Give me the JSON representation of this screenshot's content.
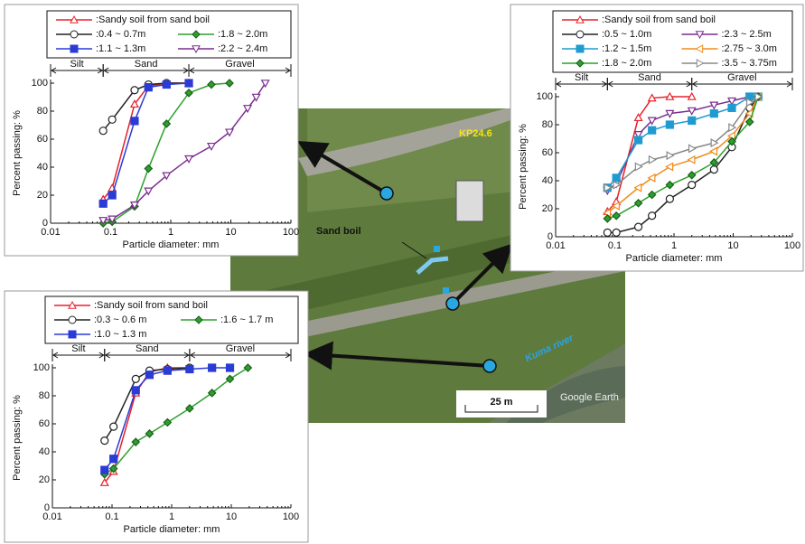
{
  "chart_data": [
    {
      "type": "line",
      "xscale": "log",
      "xlabel": "Particle diameter: mm",
      "ylabel": "Percent passing: %",
      "xlim": [
        0.01,
        100
      ],
      "xticks": [
        0.01,
        0.1,
        1,
        10,
        100
      ],
      "ylim": [
        0,
        100
      ],
      "yticks": [
        0,
        20,
        40,
        60,
        80,
        100
      ],
      "zones": [
        {
          "label": "Silt",
          "range": [
            0.01,
            0.075
          ]
        },
        {
          "label": "Sand",
          "range": [
            0.075,
            2
          ]
        },
        {
          "label": "Gravel",
          "range": [
            2,
            100
          ]
        }
      ],
      "series": [
        {
          "name": ":Sandy soil from sand boil",
          "color": "#e8202a",
          "marker": "triangle",
          "x": [
            0.075,
            0.106,
            0.25,
            0.425,
            0.85,
            2
          ],
          "values": [
            17,
            25,
            85,
            98,
            100,
            100
          ]
        },
        {
          "name": ":0.4 ~ 0.7m",
          "color": "#222222",
          "marker": "circle",
          "x": [
            0.075,
            0.106,
            0.25,
            0.425,
            0.85,
            2
          ],
          "values": [
            66,
            74,
            95,
            99,
            100,
            100
          ]
        },
        {
          "name": ":1.8 ~ 2.0m",
          "color": "#2ca02c",
          "marker": "diamond",
          "x": [
            0.075,
            0.106,
            0.25,
            0.425,
            0.85,
            2,
            4.75,
            9.5
          ],
          "values": [
            0,
            1,
            12,
            39,
            71,
            93,
            99,
            100
          ]
        },
        {
          "name": ":1.1 ~ 1.3m",
          "color": "#2a3bd6",
          "marker": "square",
          "x": [
            0.075,
            0.106,
            0.25,
            0.425,
            0.85,
            2
          ],
          "values": [
            14,
            20,
            73,
            97,
            99,
            100
          ]
        },
        {
          "name": ":2.2 ~ 2.4m",
          "color": "#7b2c8f",
          "marker": "triangle-down",
          "x": [
            0.075,
            0.106,
            0.25,
            0.425,
            0.85,
            2,
            4.75,
            9.5,
            19,
            26.5,
            37.5
          ],
          "values": [
            2,
            3,
            13,
            23,
            34,
            46,
            55,
            65,
            82,
            90,
            100
          ]
        }
      ]
    },
    {
      "type": "line",
      "xscale": "log",
      "xlabel": "Particle diameter: mm",
      "ylabel": "Percent passing: %",
      "xlim": [
        0.01,
        100
      ],
      "xticks": [
        0.01,
        0.1,
        1,
        10,
        100
      ],
      "ylim": [
        0,
        100
      ],
      "yticks": [
        0,
        20,
        40,
        60,
        80,
        100
      ],
      "zones": [
        {
          "label": "Silt",
          "range": [
            0.01,
            0.075
          ]
        },
        {
          "label": "Sand",
          "range": [
            0.075,
            2
          ]
        },
        {
          "label": "Gravel",
          "range": [
            2,
            100
          ]
        }
      ],
      "series": [
        {
          "name": ":Sandy soil from sand boil",
          "color": "#e8202a",
          "marker": "triangle",
          "x": [
            0.075,
            0.106,
            0.25,
            0.425,
            0.85,
            2
          ],
          "values": [
            18,
            25,
            85,
            99,
            100,
            100
          ]
        },
        {
          "name": ":0.5 ~ 1.0m",
          "color": "#222222",
          "marker": "circle",
          "x": [
            0.075,
            0.106,
            0.25,
            0.425,
            0.85,
            2,
            4.75,
            9.5,
            19,
            26.5
          ],
          "values": [
            3,
            3,
            7,
            15,
            27,
            37,
            48,
            64,
            92,
            100
          ]
        },
        {
          "name": ":2.3 ~ 2.5m",
          "color": "#7b2c8f",
          "marker": "triangle-down",
          "x": [
            0.075,
            0.106,
            0.25,
            0.425,
            0.85,
            2,
            4.75,
            9.5,
            19
          ],
          "values": [
            33,
            38,
            73,
            83,
            88,
            90,
            94,
            97,
            100
          ]
        },
        {
          "name": ":1.2 ~ 1.5m",
          "color": "#1f9bd1",
          "marker": "square",
          "x": [
            0.075,
            0.106,
            0.25,
            0.425,
            0.85,
            2,
            4.75,
            9.5,
            19,
            26.5
          ],
          "values": [
            35,
            42,
            69,
            76,
            80,
            83,
            88,
            92,
            100,
            100
          ]
        },
        {
          "name": ":2.75 ~ 3.0m",
          "color": "#f08a1c",
          "marker": "triangle-left",
          "x": [
            0.075,
            0.106,
            0.25,
            0.425,
            0.85,
            2,
            4.75,
            9.5,
            19,
            26.5
          ],
          "values": [
            17,
            22,
            35,
            42,
            50,
            55,
            61,
            72,
            88,
            100
          ]
        },
        {
          "name": ":1.8 ~ 2.0m",
          "color": "#2ca02c",
          "marker": "diamond",
          "x": [
            0.075,
            0.106,
            0.25,
            0.425,
            0.85,
            2,
            4.75,
            9.5,
            19,
            26.5
          ],
          "values": [
            13,
            15,
            24,
            30,
            37,
            44,
            53,
            68,
            82,
            100
          ]
        },
        {
          "name": ":3.5 ~ 3.75m",
          "color": "#888888",
          "marker": "triangle-right",
          "x": [
            0.075,
            0.106,
            0.25,
            0.425,
            0.85,
            2,
            4.75,
            9.5,
            19,
            26.5
          ],
          "values": [
            35,
            37,
            50,
            55,
            58,
            63,
            67,
            78,
            96,
            100
          ]
        }
      ]
    },
    {
      "type": "line",
      "xscale": "log",
      "xlabel": "Particle diameter: mm",
      "ylabel": "Percent passing: %",
      "xlim": [
        0.01,
        100
      ],
      "xticks": [
        0.01,
        0.1,
        1,
        10,
        100
      ],
      "ylim": [
        0,
        100
      ],
      "yticks": [
        0,
        20,
        40,
        60,
        80,
        100
      ],
      "zones": [
        {
          "label": "Silt",
          "range": [
            0.01,
            0.075
          ]
        },
        {
          "label": "Sand",
          "range": [
            0.075,
            2
          ]
        },
        {
          "label": "Gravel",
          "range": [
            2,
            100
          ]
        }
      ],
      "series": [
        {
          "name": ":Sandy soil from sand boil",
          "color": "#e8202a",
          "marker": "triangle",
          "x": [
            0.075,
            0.106,
            0.25,
            0.425,
            0.85,
            2
          ],
          "values": [
            18,
            26,
            82,
            97,
            100,
            100
          ]
        },
        {
          "name": ":0.3 ~ 0.6 m",
          "color": "#222222",
          "marker": "circle",
          "x": [
            0.075,
            0.106,
            0.25,
            0.425,
            0.85,
            2
          ],
          "values": [
            48,
            58,
            92,
            98,
            99,
            100
          ]
        },
        {
          "name": ":1.6 ~ 1.7 m",
          "color": "#2ca02c",
          "marker": "diamond",
          "x": [
            0.075,
            0.106,
            0.25,
            0.425,
            0.85,
            2,
            4.75,
            9.5,
            19
          ],
          "values": [
            24,
            28,
            47,
            53,
            61,
            71,
            82,
            92,
            100
          ]
        },
        {
          "name": ":1.0 ~ 1.3 m",
          "color": "#2a3bd6",
          "marker": "square",
          "x": [
            0.075,
            0.106,
            0.25,
            0.425,
            0.85,
            2,
            4.75,
            9.5
          ],
          "values": [
            27,
            35,
            84,
            95,
            98,
            99,
            100,
            100
          ]
        }
      ]
    }
  ],
  "photo": {
    "site": "KP24.6",
    "feature": "Sand boil",
    "river": "Kuma river",
    "scale": "25 m",
    "credit": "Google Earth"
  }
}
